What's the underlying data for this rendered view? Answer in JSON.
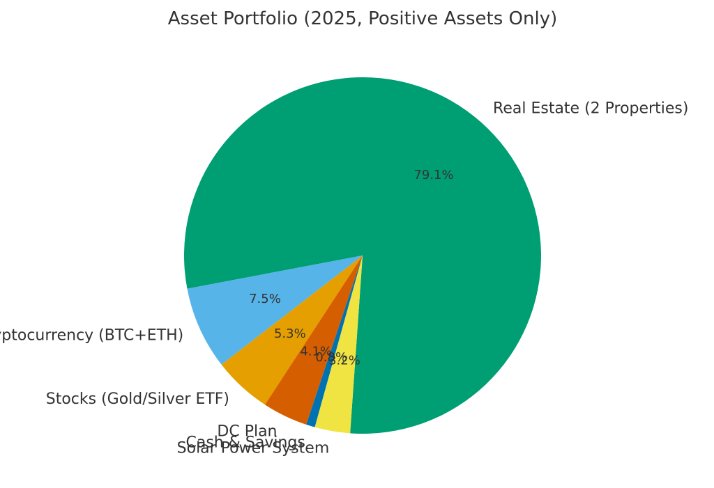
{
  "chart_data": {
    "type": "pie",
    "title": "Asset Portfolio (2025, Positive Assets Only)",
    "categories": [
      "Real Estate (2 Properties)",
      "Cryptocurrency (BTC+ETH)",
      "Stocks (Gold/Silver ETF)",
      "DC Plan",
      "Cash & Savings",
      "Solar Power System"
    ],
    "values": [
      79.1,
      7.5,
      5.3,
      4.1,
      0.8,
      3.2
    ],
    "percent_labels": [
      "79.1%",
      "7.5%",
      "5.3%",
      "4.1%",
      "0.8%",
      "3.2%"
    ],
    "colors": [
      "#009E73",
      "#56B4E9",
      "#E69F00",
      "#D55E00",
      "#0072B2",
      "#F0E442"
    ],
    "legend": "none"
  }
}
